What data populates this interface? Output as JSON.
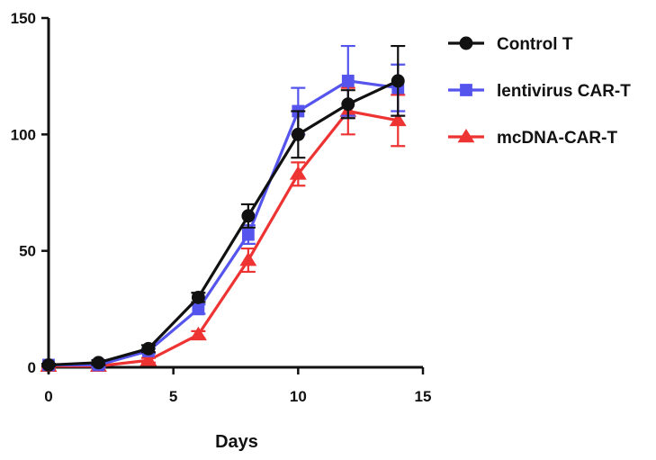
{
  "chart_data": {
    "type": "line",
    "title": "",
    "xlabel": "Days",
    "ylabel": "",
    "xlim": [
      0,
      15
    ],
    "ylim": [
      0,
      150
    ],
    "xticks": [
      0,
      5,
      10,
      15
    ],
    "yticks": [
      0,
      50,
      100,
      150
    ],
    "grid": false,
    "legend_position": "top-right",
    "series": [
      {
        "name": "Control T",
        "color": "#111111",
        "marker": "circle",
        "x": [
          0,
          2,
          4,
          6,
          8,
          10,
          12,
          14
        ],
        "y": [
          1,
          2,
          8,
          30,
          65,
          100,
          113,
          123
        ],
        "err": [
          0.5,
          1,
          1.5,
          2,
          5,
          10,
          6,
          15
        ]
      },
      {
        "name": "lentivirus CAR-T",
        "color": "#5555ee",
        "marker": "square",
        "x": [
          0,
          2,
          4,
          6,
          8,
          10,
          12,
          14
        ],
        "y": [
          1,
          1,
          7,
          25,
          57,
          110,
          123,
          120
        ],
        "err": [
          0.5,
          1,
          1,
          2,
          4,
          10,
          15,
          10
        ]
      },
      {
        "name": "mcDNA-CAR-T",
        "color": "#ee3333",
        "marker": "triangle",
        "x": [
          0,
          2,
          4,
          6,
          8,
          10,
          12,
          14
        ],
        "y": [
          0.5,
          0.5,
          3,
          14,
          46,
          83,
          110,
          106
        ],
        "err": [
          0.5,
          0.5,
          1,
          1.5,
          5,
          5,
          10,
          11
        ]
      }
    ]
  }
}
